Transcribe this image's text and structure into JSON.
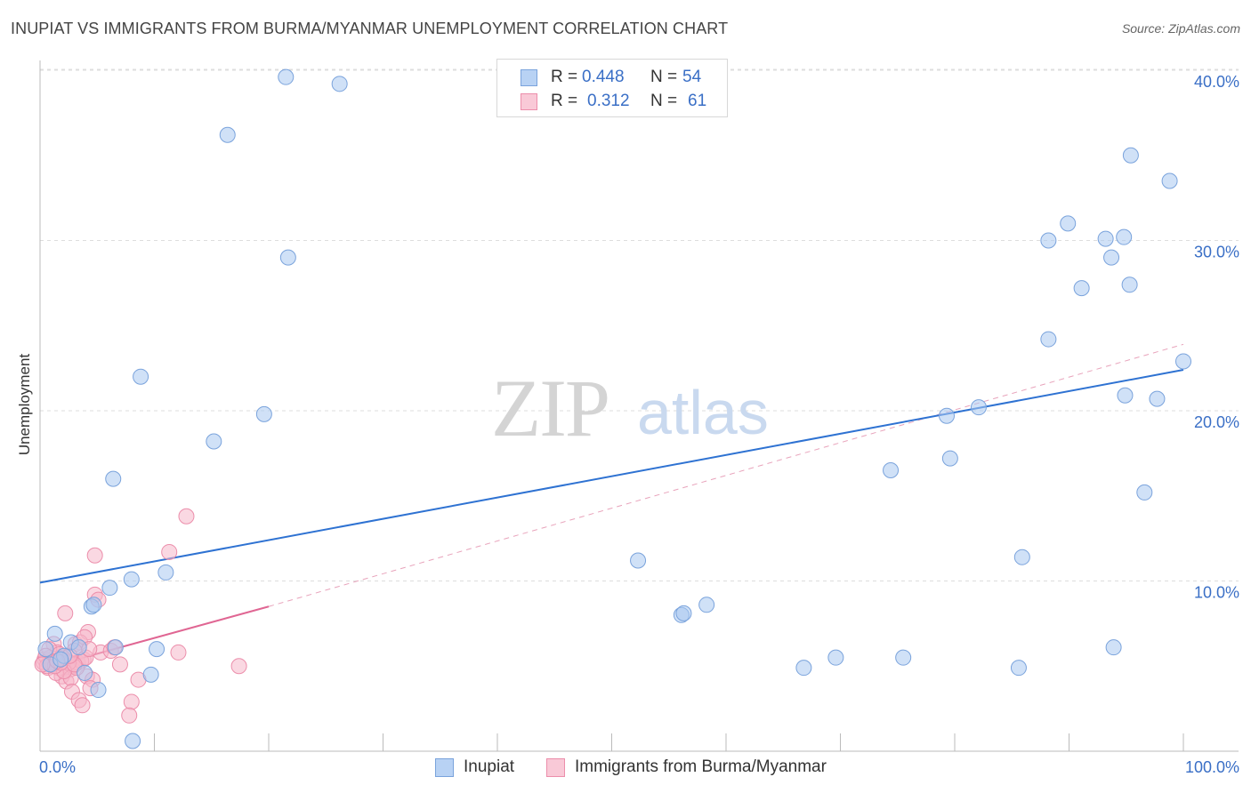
{
  "header": {
    "title": "INUPIAT VS IMMIGRANTS FROM BURMA/MYANMAR UNEMPLOYMENT CORRELATION CHART",
    "source": "Source: ZipAtlas.com"
  },
  "watermark": {
    "part1": "ZIP",
    "part2": "atlas"
  },
  "legend_top": {
    "rows": [
      {
        "r_label": "R = ",
        "r_value": "0.448",
        "n_label": "N = ",
        "n_value": "54"
      },
      {
        "r_label": "R = ",
        "r_value": "0.312",
        "n_label": "N = ",
        "n_value": "61"
      }
    ]
  },
  "colors": {
    "inupiat_fill": "#aac8f0",
    "inupiat_stroke": "#7aa3dc",
    "inupiat_line": "#2e72d2",
    "burma_fill": "#f6b8cb",
    "burma_stroke": "#ec8eab",
    "burma_line": "#e06693",
    "grid": "#dddddd",
    "axis": "#bbbbbb",
    "tick_label": "#3a6fc6"
  },
  "chart_data": {
    "type": "scatter",
    "title": "INUPIAT VS IMMIGRANTS FROM BURMA/MYANMAR UNEMPLOYMENT CORRELATION CHART",
    "xlabel": "",
    "ylabel": "Unemployment",
    "xlim": [
      0,
      100
    ],
    "ylim": [
      0,
      40
    ],
    "x_tick_labels": [
      {
        "value": 0,
        "label": "0.0%"
      },
      {
        "value": 100,
        "label": "100.0%"
      }
    ],
    "y_tick_labels": [
      {
        "value": 10,
        "label": "10.0%"
      },
      {
        "value": 20,
        "label": "20.0%"
      },
      {
        "value": 30,
        "label": "30.0%"
      },
      {
        "value": 40,
        "label": "40.0%"
      }
    ],
    "legend_position": "bottom-center",
    "series": [
      {
        "name": "Inupiat",
        "r": 0.448,
        "n": 54,
        "trend": {
          "x0": 0,
          "y0": 9.9,
          "x1": 100,
          "y1": 22.4,
          "style": "solid"
        },
        "points": [
          [
            21.5,
            39.6
          ],
          [
            26.2,
            39.2
          ],
          [
            16.4,
            36.2
          ],
          [
            21.7,
            29.0
          ],
          [
            8.8,
            22.0
          ],
          [
            19.6,
            19.8
          ],
          [
            15.2,
            18.2
          ],
          [
            6.4,
            16.0
          ],
          [
            11.0,
            10.5
          ],
          [
            8.0,
            10.1
          ],
          [
            6.1,
            9.6
          ],
          [
            4.5,
            8.5
          ],
          [
            4.7,
            8.6
          ],
          [
            1.3,
            6.9
          ],
          [
            2.7,
            6.4
          ],
          [
            3.4,
            6.1
          ],
          [
            2.1,
            5.6
          ],
          [
            6.6,
            6.1
          ],
          [
            10.2,
            6.0
          ],
          [
            0.5,
            6.0
          ],
          [
            3.9,
            4.6
          ],
          [
            9.7,
            4.5
          ],
          [
            5.1,
            3.6
          ],
          [
            8.1,
            0.6
          ],
          [
            52.3,
            11.2
          ],
          [
            56.1,
            8.0
          ],
          [
            56.3,
            8.1
          ],
          [
            58.3,
            8.6
          ],
          [
            66.8,
            4.9
          ],
          [
            69.6,
            5.5
          ],
          [
            75.5,
            5.5
          ],
          [
            85.6,
            4.9
          ],
          [
            74.4,
            16.5
          ],
          [
            79.6,
            17.2
          ],
          [
            95.4,
            35.0
          ],
          [
            98.8,
            33.5
          ],
          [
            89.9,
            31.0
          ],
          [
            88.2,
            30.0
          ],
          [
            93.2,
            30.1
          ],
          [
            94.8,
            30.2
          ],
          [
            93.7,
            29.0
          ],
          [
            91.1,
            27.2
          ],
          [
            95.3,
            27.4
          ],
          [
            88.2,
            24.2
          ],
          [
            100.0,
            22.9
          ],
          [
            94.9,
            20.9
          ],
          [
            97.7,
            20.7
          ],
          [
            82.1,
            20.2
          ],
          [
            79.3,
            19.7
          ],
          [
            96.6,
            15.2
          ],
          [
            85.9,
            11.4
          ],
          [
            93.9,
            6.1
          ],
          [
            0.9,
            5.1
          ],
          [
            1.8,
            5.4
          ]
        ]
      },
      {
        "name": "Immigrants from Burma/Myanmar",
        "r": 0.312,
        "n": 61,
        "trend": {
          "x0": 0,
          "y0": 4.8,
          "x1": 20,
          "y1": 8.5,
          "style": "solid"
        },
        "trend_extended": {
          "x0": 20,
          "y0": 8.5,
          "x1": 100,
          "y1": 23.9,
          "style": "dashed"
        },
        "points": [
          [
            12.8,
            13.8
          ],
          [
            11.3,
            11.7
          ],
          [
            4.8,
            11.5
          ],
          [
            2.2,
            8.1
          ],
          [
            4.8,
            9.2
          ],
          [
            5.1,
            8.9
          ],
          [
            17.4,
            5.0
          ],
          [
            12.1,
            5.8
          ],
          [
            4.2,
            7.0
          ],
          [
            3.1,
            6.3
          ],
          [
            3.5,
            6.4
          ],
          [
            3.0,
            5.9
          ],
          [
            1.2,
            6.3
          ],
          [
            1.5,
            5.8
          ],
          [
            0.4,
            5.4
          ],
          [
            0.7,
            4.9
          ],
          [
            0.3,
            5.2
          ],
          [
            0.9,
            5.5
          ],
          [
            1.1,
            5.1
          ],
          [
            1.6,
            4.9
          ],
          [
            2.0,
            5.5
          ],
          [
            2.4,
            5.3
          ],
          [
            2.6,
            4.8
          ],
          [
            2.9,
            5.0
          ],
          [
            3.3,
            5.2
          ],
          [
            3.8,
            5.4
          ],
          [
            4.1,
            4.4
          ],
          [
            4.6,
            4.2
          ],
          [
            5.3,
            5.8
          ],
          [
            6.2,
            5.9
          ],
          [
            7.0,
            5.1
          ],
          [
            8.6,
            4.2
          ],
          [
            1.9,
            4.4
          ],
          [
            2.3,
            4.1
          ],
          [
            2.7,
            4.3
          ],
          [
            3.6,
            5.3
          ],
          [
            0.8,
            6.0
          ],
          [
            1.4,
            4.6
          ],
          [
            1.7,
            5.7
          ],
          [
            0.5,
            5.6
          ],
          [
            2.8,
            3.5
          ],
          [
            3.4,
            3.0
          ],
          [
            3.7,
            2.7
          ],
          [
            4.4,
            3.7
          ],
          [
            8.0,
            2.9
          ],
          [
            7.8,
            2.1
          ],
          [
            3.2,
            4.9
          ],
          [
            2.5,
            5.2
          ],
          [
            1.0,
            5.2
          ],
          [
            0.6,
            5.0
          ],
          [
            4.0,
            5.5
          ],
          [
            3.9,
            6.7
          ],
          [
            2.1,
            4.7
          ],
          [
            1.3,
            5.0
          ],
          [
            0.2,
            5.1
          ],
          [
            1.8,
            5.2
          ],
          [
            3.0,
            5.1
          ],
          [
            4.3,
            6.0
          ],
          [
            2.6,
            5.6
          ],
          [
            1.5,
            5.3
          ],
          [
            6.5,
            6.1
          ]
        ]
      }
    ]
  },
  "legend_bottom": {
    "items": [
      "Inupiat",
      "Immigrants from Burma/Myanmar"
    ]
  }
}
